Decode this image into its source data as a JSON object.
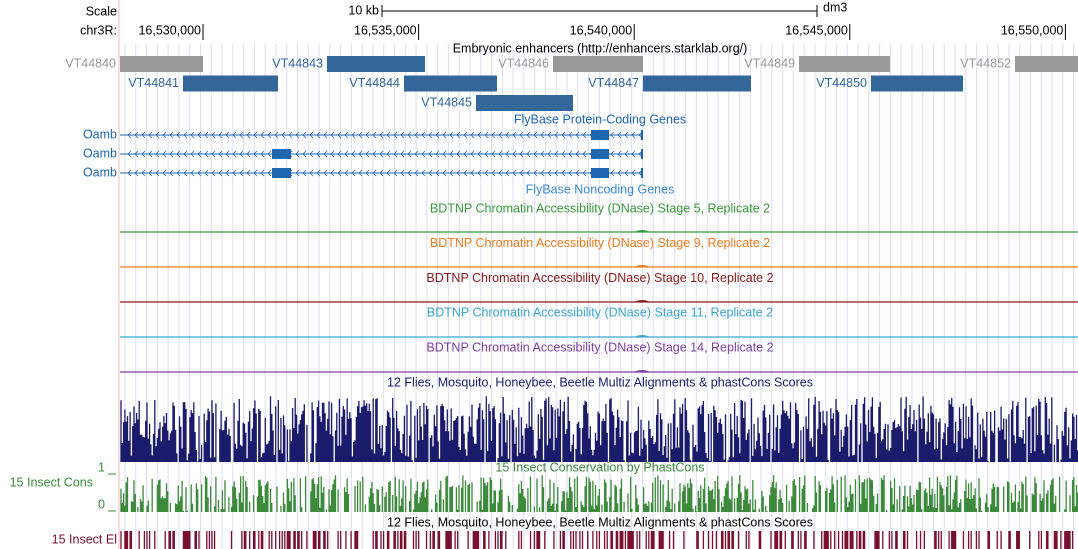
{
  "scale": {
    "label": "Scale",
    "length": "10 kb",
    "assembly": "dm3"
  },
  "ruler": {
    "chrom": "chr3R:",
    "ticks": [
      "16,530,000",
      "16,535,000",
      "16,540,000",
      "16,545,000",
      "16,550,000"
    ]
  },
  "enhancers": {
    "title": "Embryonic enhancers (http://enhancers.starklab.org/)",
    "items": [
      {
        "name": "VT44840",
        "color": "#999999"
      },
      {
        "name": "VT44841",
        "color": "#336699"
      },
      {
        "name": "VT44843",
        "color": "#336699"
      },
      {
        "name": "VT44844",
        "color": "#336699"
      },
      {
        "name": "VT44845",
        "color": "#336699"
      },
      {
        "name": "VT44846",
        "color": "#999999"
      },
      {
        "name": "VT44847",
        "color": "#336699"
      },
      {
        "name": "VT44849",
        "color": "#999999"
      },
      {
        "name": "VT44850",
        "color": "#336699"
      },
      {
        "name": "VT44852",
        "color": "#999999"
      }
    ]
  },
  "genes": {
    "title": "FlyBase Protein-Coding Genes",
    "items": [
      "Oamb",
      "Oamb",
      "Oamb"
    ],
    "color": "#1f66b0"
  },
  "noncoding": {
    "title": "FlyBase Noncoding Genes",
    "color": "#3b8ad0"
  },
  "dnase": [
    {
      "title": "BDTNP Chromatin Accessibility (DNase) Stage 5, Replicate 2",
      "color": "#3a9a3a"
    },
    {
      "title": "BDTNP Chromatin Accessibility (DNase) Stage 9, Replicate 2",
      "color": "#f07c1c"
    },
    {
      "title": "BDTNP Chromatin Accessibility (DNase) Stage 10, Replicate 2",
      "color": "#8b1a1a"
    },
    {
      "title": "BDTNP Chromatin Accessibility (DNase) Stage 11, Replicate 2",
      "color": "#3aa6d0"
    },
    {
      "title": "BDTNP Chromatin Accessibility (DNase) Stage 14, Replicate 2",
      "color": "#7d3fa0"
    }
  ],
  "multiz": {
    "title": "12 Flies, Mosquito, Honeybee, Beetle Multiz Alignments & phastCons Scores",
    "color": "#1b1b6b"
  },
  "phastcons": {
    "label": "15 Insect Cons",
    "title": "15 Insect Conservation by PhastCons",
    "axis_max": 1,
    "axis_min": 0,
    "color": "#3d8a3d"
  },
  "elements": {
    "label": "15 Insect El",
    "title": "12 Flies, Mosquito, Honeybee, Beetle Multiz Alignments & phastCons Scores",
    "color": "#7a1030"
  }
}
